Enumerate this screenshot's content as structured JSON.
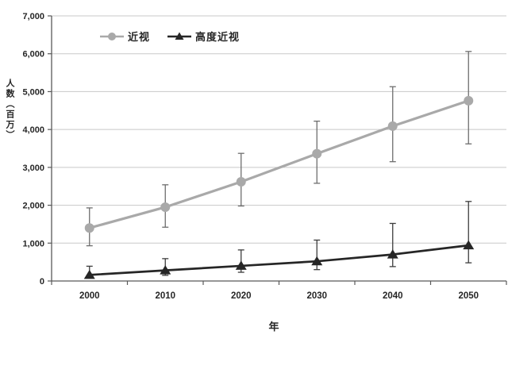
{
  "chart_data": {
    "type": "line",
    "title": "",
    "x": [
      "2000",
      "2010",
      "2020",
      "2030",
      "2040",
      "2050"
    ],
    "series": [
      {
        "name": "近视",
        "values": [
          1400,
          1950,
          2620,
          3360,
          4090,
          4760
        ],
        "ci_low": [
          930,
          1420,
          1980,
          2580,
          3150,
          3620
        ],
        "ci_high": [
          1930,
          2540,
          3370,
          4220,
          5130,
          6060
        ],
        "marker": "circle",
        "color": "#a9a9a9",
        "error_color": "#6e6e6e"
      },
      {
        "name": "高度近视",
        "values": [
          160,
          280,
          400,
          520,
          700,
          940
        ],
        "ci_low": [
          90,
          150,
          230,
          300,
          380,
          480
        ],
        "ci_high": [
          390,
          590,
          820,
          1080,
          1520,
          2100
        ],
        "marker": "triangle",
        "color": "#262626",
        "error_color": "#3d3d3d"
      }
    ],
    "xlabel": "年",
    "ylabel": "人数（百万）",
    "ylim": [
      0,
      7000
    ],
    "ytick_step": 1000,
    "ytick_labels": [
      "0",
      "1,000",
      "2,000",
      "3,000",
      "4,000",
      "5,000",
      "6,000",
      "7,000"
    ],
    "grid": true,
    "legend_position": "top-center",
    "error_bars": "95% CI"
  },
  "colors": {
    "background": "#ffffff",
    "gridline": "#c8c8c8",
    "axis": "#595959",
    "text": "#262626"
  }
}
